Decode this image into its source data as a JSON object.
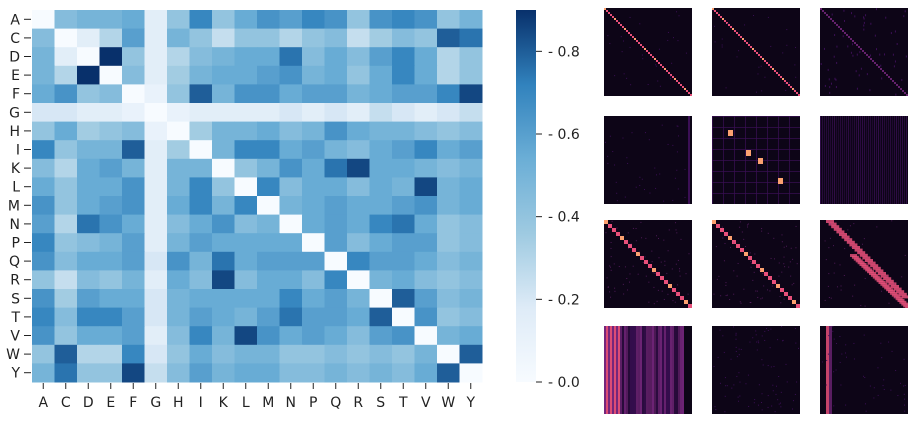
{
  "chart_data": [
    {
      "type": "heatmap",
      "title": "",
      "xlabel": "",
      "ylabel": "",
      "x_categories": [
        "A",
        "C",
        "D",
        "E",
        "F",
        "G",
        "H",
        "I",
        "K",
        "L",
        "M",
        "N",
        "P",
        "Q",
        "R",
        "S",
        "T",
        "V",
        "W",
        "Y"
      ],
      "y_categories": [
        "A",
        "C",
        "D",
        "E",
        "F",
        "G",
        "H",
        "I",
        "K",
        "L",
        "M",
        "N",
        "P",
        "Q",
        "R",
        "S",
        "T",
        "V",
        "W",
        "Y"
      ],
      "values": [
        [
          0.0,
          0.45,
          0.5,
          0.5,
          0.55,
          0.15,
          0.4,
          0.7,
          0.4,
          0.55,
          0.65,
          0.6,
          0.7,
          0.65,
          0.4,
          0.65,
          0.7,
          0.65,
          0.4,
          0.5
        ],
        [
          0.45,
          0.0,
          0.15,
          0.3,
          0.6,
          0.15,
          0.5,
          0.4,
          0.25,
          0.4,
          0.4,
          0.3,
          0.4,
          0.45,
          0.25,
          0.35,
          0.45,
          0.4,
          0.8,
          0.75
        ],
        [
          0.5,
          0.15,
          0.0,
          0.9,
          0.4,
          0.15,
          0.3,
          0.45,
          0.5,
          0.55,
          0.55,
          0.75,
          0.45,
          0.55,
          0.45,
          0.6,
          0.7,
          0.55,
          0.3,
          0.4
        ],
        [
          0.5,
          0.3,
          0.9,
          0.0,
          0.45,
          0.15,
          0.35,
          0.5,
          0.55,
          0.55,
          0.6,
          0.65,
          0.5,
          0.55,
          0.4,
          0.55,
          0.7,
          0.55,
          0.3,
          0.4
        ],
        [
          0.55,
          0.65,
          0.4,
          0.45,
          0.0,
          0.1,
          0.4,
          0.8,
          0.5,
          0.65,
          0.65,
          0.55,
          0.6,
          0.6,
          0.5,
          0.55,
          0.6,
          0.6,
          0.7,
          0.85
        ],
        [
          0.2,
          0.2,
          0.15,
          0.15,
          0.1,
          0.0,
          0.1,
          0.15,
          0.15,
          0.15,
          0.15,
          0.2,
          0.15,
          0.2,
          0.15,
          0.25,
          0.2,
          0.15,
          0.2,
          0.25
        ],
        [
          0.4,
          0.55,
          0.35,
          0.4,
          0.45,
          0.1,
          0.0,
          0.35,
          0.5,
          0.5,
          0.55,
          0.45,
          0.5,
          0.65,
          0.55,
          0.5,
          0.5,
          0.45,
          0.4,
          0.45
        ],
        [
          0.7,
          0.4,
          0.5,
          0.5,
          0.8,
          0.15,
          0.35,
          0.0,
          0.5,
          0.7,
          0.7,
          0.55,
          0.6,
          0.5,
          0.45,
          0.55,
          0.6,
          0.7,
          0.55,
          0.6
        ],
        [
          0.45,
          0.3,
          0.55,
          0.6,
          0.5,
          0.15,
          0.5,
          0.5,
          0.0,
          0.4,
          0.5,
          0.65,
          0.55,
          0.75,
          0.85,
          0.55,
          0.55,
          0.5,
          0.45,
          0.5
        ],
        [
          0.55,
          0.4,
          0.55,
          0.55,
          0.65,
          0.15,
          0.5,
          0.7,
          0.4,
          0.0,
          0.7,
          0.45,
          0.55,
          0.55,
          0.45,
          0.55,
          0.5,
          0.85,
          0.5,
          0.55
        ],
        [
          0.65,
          0.4,
          0.55,
          0.6,
          0.65,
          0.15,
          0.55,
          0.7,
          0.5,
          0.7,
          0.0,
          0.5,
          0.55,
          0.6,
          0.55,
          0.55,
          0.6,
          0.65,
          0.5,
          0.55
        ],
        [
          0.6,
          0.3,
          0.75,
          0.65,
          0.55,
          0.15,
          0.45,
          0.55,
          0.65,
          0.45,
          0.5,
          0.0,
          0.55,
          0.6,
          0.55,
          0.7,
          0.75,
          0.55,
          0.4,
          0.45
        ],
        [
          0.7,
          0.4,
          0.45,
          0.5,
          0.6,
          0.15,
          0.5,
          0.6,
          0.55,
          0.55,
          0.55,
          0.55,
          0.0,
          0.6,
          0.45,
          0.55,
          0.6,
          0.6,
          0.4,
          0.45
        ],
        [
          0.65,
          0.45,
          0.55,
          0.55,
          0.6,
          0.2,
          0.65,
          0.5,
          0.75,
          0.55,
          0.6,
          0.6,
          0.6,
          0.0,
          0.7,
          0.6,
          0.6,
          0.55,
          0.45,
          0.5
        ],
        [
          0.4,
          0.25,
          0.45,
          0.4,
          0.5,
          0.15,
          0.55,
          0.45,
          0.85,
          0.45,
          0.55,
          0.55,
          0.45,
          0.7,
          0.0,
          0.5,
          0.55,
          0.45,
          0.4,
          0.45
        ],
        [
          0.65,
          0.35,
          0.6,
          0.55,
          0.55,
          0.2,
          0.5,
          0.55,
          0.55,
          0.55,
          0.55,
          0.7,
          0.55,
          0.6,
          0.5,
          0.0,
          0.8,
          0.6,
          0.45,
          0.5
        ],
        [
          0.7,
          0.45,
          0.7,
          0.7,
          0.6,
          0.2,
          0.5,
          0.6,
          0.55,
          0.5,
          0.6,
          0.75,
          0.6,
          0.6,
          0.55,
          0.8,
          0.0,
          0.65,
          0.4,
          0.45
        ],
        [
          0.65,
          0.4,
          0.55,
          0.55,
          0.6,
          0.15,
          0.45,
          0.7,
          0.5,
          0.85,
          0.65,
          0.55,
          0.6,
          0.55,
          0.45,
          0.6,
          0.65,
          0.0,
          0.5,
          0.55
        ],
        [
          0.4,
          0.8,
          0.3,
          0.3,
          0.7,
          0.2,
          0.4,
          0.55,
          0.45,
          0.5,
          0.5,
          0.4,
          0.4,
          0.45,
          0.4,
          0.45,
          0.4,
          0.5,
          0.0,
          0.8
        ],
        [
          0.5,
          0.75,
          0.4,
          0.4,
          0.85,
          0.25,
          0.45,
          0.6,
          0.5,
          0.55,
          0.55,
          0.45,
          0.45,
          0.5,
          0.45,
          0.5,
          0.45,
          0.55,
          0.8,
          0.0
        ]
      ],
      "colorbar": {
        "range": [
          0.0,
          0.9
        ],
        "ticks": [
          "0.0",
          "0.2",
          "0.4",
          "0.6",
          "0.8"
        ],
        "colormap": "Blues"
      }
    },
    {
      "type": "heatmap",
      "title": "",
      "panel_grid": [
        4,
        3
      ],
      "colormap": "magma",
      "panels": [
        {
          "pattern": "diagonal-sharp"
        },
        {
          "pattern": "diagonal-sharp"
        },
        {
          "pattern": "diagonal-faint"
        },
        {
          "pattern": "sparse-dark"
        },
        {
          "pattern": "few-hotspots"
        },
        {
          "pattern": "columns-faint"
        },
        {
          "pattern": "diagonal-blocky"
        },
        {
          "pattern": "diagonal-blocky"
        },
        {
          "pattern": "diagonal-double-band"
        },
        {
          "pattern": "vertical-stripes-left"
        },
        {
          "pattern": "noise-dark"
        },
        {
          "pattern": "vertical-stripe-single"
        }
      ]
    }
  ]
}
